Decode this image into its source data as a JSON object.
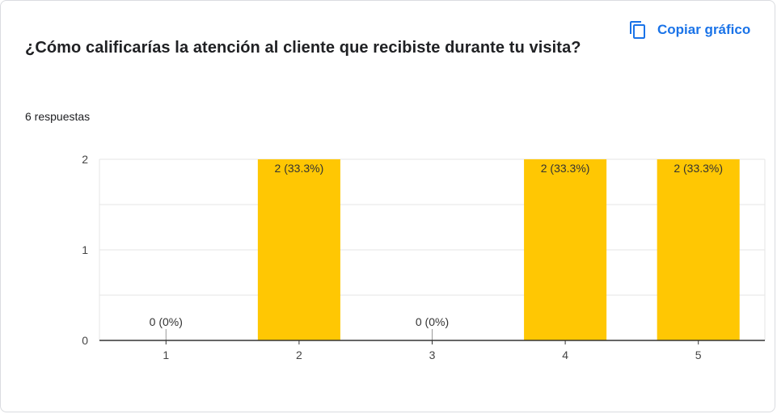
{
  "question": "¿Cómo calificarías la atención al cliente que recibiste durante tu visita?",
  "copy_button": {
    "label": "Copiar gráfico",
    "icon": "copy-icon"
  },
  "responses_text": "6 respuestas",
  "colors": {
    "bar": "#ffc703",
    "accent": "#1a73e8"
  },
  "chart_data": {
    "type": "bar",
    "categories": [
      "1",
      "2",
      "3",
      "4",
      "5"
    ],
    "values": [
      0,
      2,
      0,
      2,
      2
    ],
    "data_labels": [
      "0 (0%)",
      "2 (33.3%)",
      "0 (0%)",
      "2 (33.3%)",
      "2 (33.3%)"
    ],
    "yticks": [
      "0",
      "1",
      "2"
    ],
    "ylim": [
      0,
      2
    ],
    "grid": true,
    "title": "",
    "xlabel": "",
    "ylabel": ""
  }
}
